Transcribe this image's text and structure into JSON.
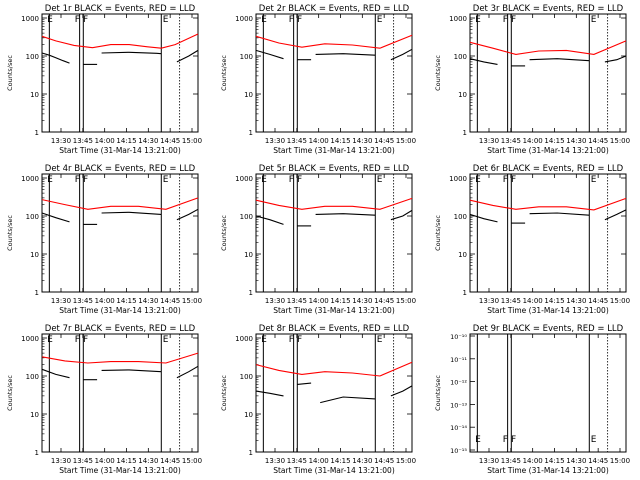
{
  "figure": {
    "time_axis_label": "Start Time (31-Mar-14 13:21:00)",
    "y_axis_label": "Counts/sec",
    "time_ticks": [
      "13:30",
      "13:45",
      "14:00",
      "14:15",
      "14:30",
      "14:45",
      "15:00"
    ],
    "log_ticks": [
      "1",
      "10",
      "100",
      "1000"
    ],
    "small_ticks": [
      "10⁻¹⁰",
      "10⁻¹¹",
      "10⁻¹²",
      "10⁻¹³",
      "10⁻¹⁴",
      "10⁻¹⁵"
    ],
    "colors": {
      "events": "#000000",
      "lld": "#ff0000"
    },
    "markers": [
      {
        "label": "E",
        "time": 13.39
      },
      {
        "label": "F",
        "time": 13.69
      },
      {
        "label": "F",
        "time": 13.78
      },
      {
        "label": "E",
        "time": 14.65
      }
    ],
    "extra_lines": [
      13.43,
      13.76,
      13.8,
      14.65,
      14.85
    ]
  },
  "chart_data": [
    {
      "type": "line",
      "title": "Det 1r BLACK = Events, RED = LLD",
      "xlabel": "Start Time (31-Mar-14 13:21:00)",
      "ylabel": "Counts/sec",
      "yscale": "log",
      "ylim": [
        1,
        1000
      ],
      "xlim": [
        "13:21",
        "15:05"
      ],
      "series": [
        {
          "name": "Events",
          "color": "#000000",
          "segments": [
            {
              "x": [
                13.35,
                13.43,
                13.5,
                13.58,
                13.65
              ],
              "y": [
                120,
                105,
                90,
                75,
                65
              ]
            },
            {
              "x": [
                13.8,
                13.95
              ],
              "y": [
                60,
                60
              ]
            },
            {
              "x": [
                14.0,
                14.3,
                14.6,
                14.65
              ],
              "y": [
                120,
                125,
                118,
                115
              ]
            },
            {
              "x": [
                14.82,
                14.95,
                15.05
              ],
              "y": [
                70,
                100,
                140
              ]
            }
          ]
        },
        {
          "name": "LLD",
          "color": "#ff0000",
          "segments": [
            {
              "x": [
                13.35,
                13.5,
                13.7,
                13.9,
                14.1,
                14.3,
                14.5,
                14.65,
                14.8,
                15.05
              ],
              "y": [
                330,
                250,
                190,
                165,
                200,
                200,
                175,
                160,
                200,
                380
              ]
            }
          ]
        }
      ]
    },
    {
      "type": "line",
      "title": "Det 2r BLACK = Events, RED = LLD",
      "xlabel": "Start Time (31-Mar-14 13:21:00)",
      "ylabel": "Counts/sec",
      "yscale": "log",
      "ylim": [
        1,
        1000
      ],
      "xlim": [
        "13:21",
        "15:05"
      ],
      "series": [
        {
          "name": "Events",
          "color": "#000000",
          "segments": [
            {
              "x": [
                13.35,
                13.5,
                13.65
              ],
              "y": [
                140,
                110,
                85
              ]
            },
            {
              "x": [
                13.8,
                13.95
              ],
              "y": [
                80,
                80
              ]
            },
            {
              "x": [
                14.0,
                14.3,
                14.65
              ],
              "y": [
                110,
                115,
                105
              ]
            },
            {
              "x": [
                14.82,
                14.95,
                15.05
              ],
              "y": [
                80,
                110,
                150
              ]
            }
          ]
        },
        {
          "name": "LLD",
          "color": "#ff0000",
          "segments": [
            {
              "x": [
                13.35,
                13.6,
                13.85,
                14.1,
                14.4,
                14.7,
                15.05
              ],
              "y": [
                330,
                220,
                170,
                210,
                195,
                160,
                350
              ]
            }
          ]
        }
      ]
    },
    {
      "type": "line",
      "title": "Det 3r BLACK = Events, RED = LLD",
      "xlabel": "Start Time (31-Mar-14 13:21:00)",
      "ylabel": "Counts/sec",
      "yscale": "log",
      "ylim": [
        1,
        1000
      ],
      "xlim": [
        "13:21",
        "15:05"
      ],
      "series": [
        {
          "name": "Events",
          "color": "#000000",
          "segments": [
            {
              "x": [
                13.35,
                13.5,
                13.65
              ],
              "y": [
                85,
                70,
                60
              ]
            },
            {
              "x": [
                13.8,
                13.95
              ],
              "y": [
                55,
                55
              ]
            },
            {
              "x": [
                14.0,
                14.3,
                14.65
              ],
              "y": [
                80,
                85,
                75
              ]
            },
            {
              "x": [
                14.82,
                14.95,
                15.05
              ],
              "y": [
                70,
                80,
                100
              ]
            }
          ]
        },
        {
          "name": "LLD",
          "color": "#ff0000",
          "segments": [
            {
              "x": [
                13.35,
                13.6,
                13.85,
                14.1,
                14.4,
                14.7,
                15.05
              ],
              "y": [
                230,
                160,
                110,
                135,
                140,
                110,
                250
              ]
            }
          ]
        }
      ]
    },
    {
      "type": "line",
      "title": "Det 4r BLACK = Events, RED = LLD",
      "xlabel": "Start Time (31-Mar-14 13:21:00)",
      "ylabel": "Counts/sec",
      "yscale": "log",
      "ylim": [
        1,
        1000
      ],
      "xlim": [
        "13:21",
        "15:05"
      ],
      "series": [
        {
          "name": "Events",
          "color": "#000000",
          "segments": [
            {
              "x": [
                13.35,
                13.5,
                13.65
              ],
              "y": [
                120,
                90,
                70
              ]
            },
            {
              "x": [
                13.8,
                13.95
              ],
              "y": [
                60,
                60
              ]
            },
            {
              "x": [
                14.0,
                14.3,
                14.65
              ],
              "y": [
                120,
                125,
                110
              ]
            },
            {
              "x": [
                14.82,
                14.95,
                15.05
              ],
              "y": [
                80,
                110,
                150
              ]
            }
          ]
        },
        {
          "name": "LLD",
          "color": "#ff0000",
          "segments": [
            {
              "x": [
                13.35,
                13.6,
                13.85,
                14.1,
                14.4,
                14.7,
                15.05
              ],
              "y": [
                270,
                200,
                150,
                180,
                180,
                150,
                300
              ]
            }
          ]
        }
      ]
    },
    {
      "type": "line",
      "title": "Det 5r BLACK = Events, RED = LLD",
      "xlabel": "Start Time (31-Mar-14 13:21:00)",
      "ylabel": "Counts/sec",
      "yscale": "log",
      "ylim": [
        1,
        1000
      ],
      "xlim": [
        "13:21",
        "15:05"
      ],
      "series": [
        {
          "name": "Events",
          "color": "#000000",
          "segments": [
            {
              "x": [
                13.35,
                13.5,
                13.65
              ],
              "y": [
                100,
                80,
                60
              ]
            },
            {
              "x": [
                13.8,
                13.95
              ],
              "y": [
                55,
                55
              ]
            },
            {
              "x": [
                14.0,
                14.3,
                14.65
              ],
              "y": [
                110,
                115,
                105
              ]
            },
            {
              "x": [
                14.82,
                14.95,
                15.05
              ],
              "y": [
                80,
                100,
                140
              ]
            }
          ]
        },
        {
          "name": "LLD",
          "color": "#ff0000",
          "segments": [
            {
              "x": [
                13.35,
                13.6,
                13.85,
                14.1,
                14.4,
                14.7,
                15.05
              ],
              "y": [
                260,
                190,
                150,
                180,
                180,
                150,
                290
              ]
            }
          ]
        }
      ]
    },
    {
      "type": "line",
      "title": "Det 6r BLACK = Events, RED = LLD",
      "xlabel": "Start Time (31-Mar-14 13:21:00)",
      "ylabel": "Counts/sec",
      "yscale": "log",
      "ylim": [
        1,
        1000
      ],
      "xlim": [
        "13:21",
        "15:05"
      ],
      "series": [
        {
          "name": "Events",
          "color": "#000000",
          "segments": [
            {
              "x": [
                13.35,
                13.5,
                13.65
              ],
              "y": [
                110,
                85,
                70
              ]
            },
            {
              "x": [
                13.8,
                13.95
              ],
              "y": [
                65,
                65
              ]
            },
            {
              "x": [
                14.0,
                14.3,
                14.65
              ],
              "y": [
                115,
                120,
                105
              ]
            },
            {
              "x": [
                14.82,
                14.95,
                15.05
              ],
              "y": [
                80,
                110,
                145
              ]
            }
          ]
        },
        {
          "name": "LLD",
          "color": "#ff0000",
          "segments": [
            {
              "x": [
                13.35,
                13.6,
                13.85,
                14.1,
                14.4,
                14.7,
                15.05
              ],
              "y": [
                260,
                190,
                150,
                175,
                175,
                145,
                290
              ]
            }
          ]
        }
      ]
    },
    {
      "type": "line",
      "title": "Det 7r BLACK = Events, RED = LLD",
      "xlabel": "Start Time (31-Mar-14 13:21:00)",
      "ylabel": "Counts/sec",
      "yscale": "log",
      "ylim": [
        1,
        1000
      ],
      "xlim": [
        "13:21",
        "15:05"
      ],
      "series": [
        {
          "name": "Events",
          "color": "#000000",
          "segments": [
            {
              "x": [
                13.35,
                13.5,
                13.65
              ],
              "y": [
                150,
                110,
                90
              ]
            },
            {
              "x": [
                13.8,
                13.95
              ],
              "y": [
                80,
                80
              ]
            },
            {
              "x": [
                14.0,
                14.3,
                14.65
              ],
              "y": [
                140,
                145,
                130
              ]
            },
            {
              "x": [
                14.82,
                14.95,
                15.05
              ],
              "y": [
                90,
                130,
                180
              ]
            }
          ]
        },
        {
          "name": "LLD",
          "color": "#ff0000",
          "segments": [
            {
              "x": [
                13.35,
                13.6,
                13.85,
                14.1,
                14.4,
                14.7,
                15.05
              ],
              "y": [
                320,
                250,
                220,
                240,
                240,
                220,
                400
              ]
            }
          ]
        }
      ]
    },
    {
      "type": "line",
      "title": "Det 8r BLACK = Events, RED = LLD",
      "xlabel": "Start Time (31-Mar-14 13:21:00)",
      "ylabel": "Counts/sec",
      "yscale": "log",
      "ylim": [
        1,
        1000
      ],
      "xlim": [
        "13:21",
        "15:05"
      ],
      "series": [
        {
          "name": "Events",
          "color": "#000000",
          "segments": [
            {
              "x": [
                13.35,
                13.5,
                13.65
              ],
              "y": [
                40,
                35,
                30
              ]
            },
            {
              "x": [
                13.8,
                13.95
              ],
              "y": [
                60,
                65
              ]
            },
            {
              "x": [
                14.05,
                14.3,
                14.65
              ],
              "y": [
                20,
                28,
                25
              ]
            },
            {
              "x": [
                14.82,
                14.95,
                15.05
              ],
              "y": [
                30,
                40,
                55
              ]
            }
          ]
        },
        {
          "name": "LLD",
          "color": "#ff0000",
          "segments": [
            {
              "x": [
                13.35,
                13.6,
                13.85,
                14.1,
                14.4,
                14.7,
                15.05
              ],
              "y": [
                200,
                140,
                110,
                130,
                120,
                100,
                230
              ]
            }
          ]
        }
      ]
    },
    {
      "type": "line",
      "title": "Det 9r BLACK = Events, RED = LLD",
      "xlabel": "Start Time (31-Mar-14 13:21:00)",
      "ylabel": "Counts/sec",
      "yscale": "log",
      "ylim": [
        1e-10,
        1e-15
      ],
      "xlim": [
        "13:21",
        "15:05"
      ],
      "series": []
    }
  ]
}
